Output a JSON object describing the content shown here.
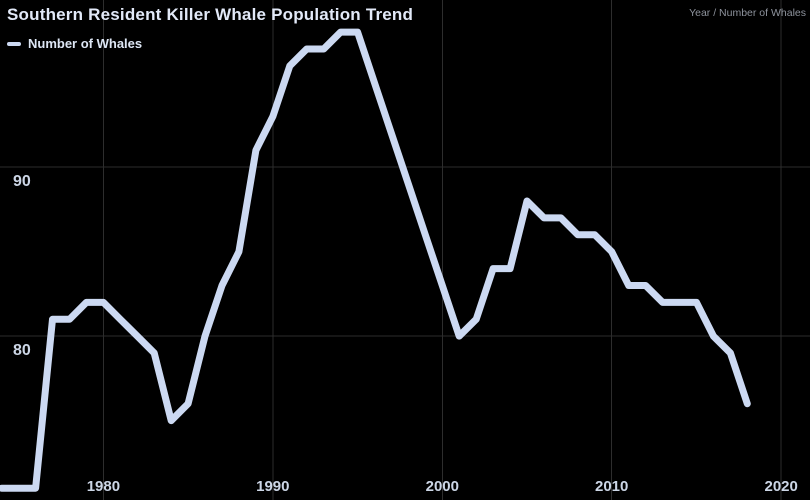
{
  "chart": {
    "title": "Southern Resident Killer Whale Population Trend",
    "legend_label": "Number of Whales",
    "corner_label": "Year / Number of Whales"
  },
  "chart_data": {
    "type": "line",
    "title": "Southern Resident Killer Whale Population Trend",
    "xlabel": "Year",
    "ylabel": "Number of Whales",
    "legend_position": "top-left",
    "grid": true,
    "x_ticks": [
      1980,
      1990,
      2000,
      2010,
      2020
    ],
    "y_ticks": [
      80,
      90
    ],
    "x_range": [
      1973.9,
      2021.7
    ],
    "y_range": [
      70.3,
      99.9
    ],
    "series": [
      {
        "name": "Number of Whales",
        "x": [
          1974,
          1975,
          1976,
          1977,
          1978,
          1979,
          1980,
          1981,
          1982,
          1983,
          1984,
          1985,
          1986,
          1987,
          1988,
          1989,
          1990,
          1991,
          1992,
          1993,
          1994,
          1995,
          1996,
          1997,
          1998,
          1999,
          2000,
          2001,
          2002,
          2003,
          2004,
          2005,
          2006,
          2007,
          2008,
          2009,
          2010,
          2011,
          2012,
          2013,
          2014,
          2015,
          2016,
          2017,
          2018
        ],
        "values": [
          71,
          71,
          71,
          81,
          81,
          82,
          82,
          81,
          80,
          79,
          75,
          76,
          80,
          83,
          85,
          91,
          93,
          96,
          97,
          97,
          98,
          98,
          95,
          92,
          89,
          86,
          83,
          80,
          81,
          84,
          84,
          88,
          87,
          87,
          86,
          86,
          85,
          83,
          83,
          82,
          82,
          82,
          80,
          79,
          76
        ]
      }
    ],
    "colors": {
      "background": "#000000",
      "line": "#ccd9f2",
      "grid": "#2d2d2d",
      "title_text": "#e2e9f8",
      "tick_text": "#ccd6e6",
      "corner_text": "#8e939d"
    }
  }
}
